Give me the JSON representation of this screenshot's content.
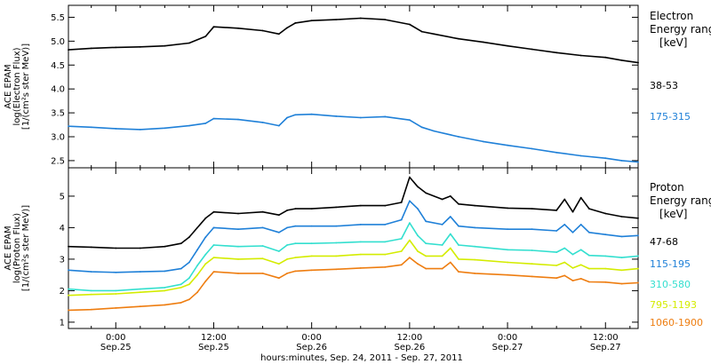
{
  "xlabel": "hours:minutes, Sep. 24, 2011 - Sep. 27, 2011",
  "chart_data": [
    {
      "type": "line",
      "ylabel": [
        "ACE EPAM",
        "log(Electron Flux)",
        "[1/(cm²s ster MeV)]"
      ],
      "ylim": [
        2.35,
        5.75
      ],
      "yticks": [
        2.5,
        3.0,
        3.5,
        4.0,
        4.5,
        5.0,
        5.5
      ],
      "ytick_labels": [
        "2.5",
        "3.0",
        "3.5",
        "4.0",
        "4.5",
        "5.0",
        "5.5"
      ],
      "xlim": [
        -5.8,
        64
      ],
      "xticks": [
        0,
        12,
        24,
        36,
        48,
        60
      ],
      "xtick_labels": [
        [
          "0:00",
          "Sep.25"
        ],
        [
          "12:00",
          "Sep.25"
        ],
        [
          "0:00",
          "Sep.26"
        ],
        [
          "12:00",
          "Sep.26"
        ],
        [
          "0:00",
          "Sep.27"
        ],
        [
          "12:00",
          "Sep.27"
        ]
      ],
      "legend_title": [
        "Electron",
        "Energy ranges",
        "[keV]"
      ],
      "series": [
        {
          "name": "38-53",
          "color": "#000000",
          "x": [
            -5.8,
            -3,
            0,
            3,
            6,
            9,
            11,
            12,
            15,
            18,
            20,
            21,
            22,
            24,
            27,
            30,
            33,
            36,
            37.5,
            39,
            42,
            45,
            48,
            51,
            54,
            57,
            60,
            62,
            64
          ],
          "values": [
            4.82,
            4.85,
            4.87,
            4.88,
            4.9,
            4.96,
            5.1,
            5.3,
            5.27,
            5.22,
            5.15,
            5.28,
            5.38,
            5.43,
            5.45,
            5.48,
            5.45,
            5.35,
            5.2,
            5.15,
            5.05,
            4.98,
            4.9,
            4.83,
            4.76,
            4.7,
            4.66,
            4.6,
            4.55
          ]
        },
        {
          "name": "175-315",
          "color": "#1f80d8",
          "x": [
            -5.8,
            -3,
            0,
            3,
            6,
            9,
            11,
            12,
            15,
            18,
            20,
            21,
            22,
            24,
            27,
            30,
            33,
            36,
            37.5,
            39,
            42,
            45,
            48,
            51,
            54,
            57,
            60,
            62,
            64
          ],
          "values": [
            3.22,
            3.2,
            3.17,
            3.15,
            3.18,
            3.23,
            3.28,
            3.38,
            3.36,
            3.3,
            3.23,
            3.4,
            3.46,
            3.47,
            3.43,
            3.4,
            3.42,
            3.35,
            3.2,
            3.12,
            3.0,
            2.9,
            2.82,
            2.75,
            2.67,
            2.6,
            2.55,
            2.5,
            2.47
          ]
        }
      ]
    },
    {
      "type": "line",
      "ylabel": [
        "ACE EPAM",
        "log(Proton Flux)",
        "[1/(cm²s ster MeV)]"
      ],
      "ylim": [
        0.8,
        5.9
      ],
      "yticks": [
        1,
        2,
        3,
        4,
        5
      ],
      "ytick_labels": [
        "1",
        "2",
        "3",
        "4",
        "5"
      ],
      "xlim": [
        -5.8,
        64
      ],
      "xticks": [
        0,
        12,
        24,
        36,
        48,
        60
      ],
      "xtick_labels": [
        [
          "0:00",
          "Sep.25"
        ],
        [
          "12:00",
          "Sep.25"
        ],
        [
          "0:00",
          "Sep.26"
        ],
        [
          "12:00",
          "Sep.26"
        ],
        [
          "0:00",
          "Sep.27"
        ],
        [
          "12:00",
          "Sep.27"
        ]
      ],
      "legend_title": [
        "Proton",
        "Energy ranges",
        "[keV]"
      ],
      "series": [
        {
          "name": "47-68",
          "color": "#000000",
          "x": [
            -5.8,
            -3,
            0,
            3,
            6,
            8,
            9,
            10,
            11,
            12,
            15,
            18,
            20,
            21,
            22,
            24,
            27,
            30,
            33,
            35,
            36,
            37,
            38,
            40,
            41,
            42,
            44,
            48,
            51,
            54,
            55,
            56,
            57,
            58,
            60,
            62,
            64
          ],
          "values": [
            3.4,
            3.38,
            3.35,
            3.35,
            3.4,
            3.5,
            3.7,
            4.0,
            4.3,
            4.5,
            4.45,
            4.5,
            4.4,
            4.55,
            4.6,
            4.6,
            4.65,
            4.7,
            4.7,
            4.8,
            5.6,
            5.3,
            5.1,
            4.9,
            5.0,
            4.75,
            4.7,
            4.62,
            4.6,
            4.55,
            4.9,
            4.5,
            4.95,
            4.6,
            4.45,
            4.35,
            4.3
          ]
        },
        {
          "name": "115-195",
          "color": "#1f80d8",
          "x": [
            -5.8,
            -3,
            0,
            3,
            6,
            8,
            9,
            10,
            11,
            12,
            15,
            18,
            20,
            21,
            22,
            24,
            27,
            30,
            33,
            35,
            36,
            37,
            38,
            40,
            41,
            42,
            44,
            48,
            51,
            54,
            55,
            56,
            57,
            58,
            60,
            62,
            64
          ],
          "values": [
            2.65,
            2.6,
            2.58,
            2.6,
            2.62,
            2.7,
            2.9,
            3.3,
            3.7,
            4.0,
            3.95,
            4.0,
            3.85,
            4.0,
            4.05,
            4.05,
            4.05,
            4.1,
            4.1,
            4.25,
            4.85,
            4.6,
            4.2,
            4.1,
            4.35,
            4.05,
            4.0,
            3.95,
            3.95,
            3.9,
            4.1,
            3.85,
            4.1,
            3.85,
            3.78,
            3.72,
            3.75
          ]
        },
        {
          "name": "310-580",
          "color": "#33dfcf",
          "x": [
            -5.8,
            -3,
            0,
            3,
            6,
            8,
            9,
            10,
            11,
            12,
            15,
            18,
            20,
            21,
            22,
            24,
            27,
            30,
            33,
            35,
            36,
            37,
            38,
            40,
            41,
            42,
            44,
            48,
            51,
            54,
            55,
            56,
            57,
            58,
            60,
            62,
            64
          ],
          "values": [
            2.05,
            2.0,
            2.0,
            2.05,
            2.1,
            2.2,
            2.4,
            2.8,
            3.15,
            3.45,
            3.4,
            3.42,
            3.25,
            3.45,
            3.5,
            3.5,
            3.52,
            3.55,
            3.55,
            3.65,
            4.15,
            3.75,
            3.5,
            3.45,
            3.8,
            3.45,
            3.4,
            3.3,
            3.28,
            3.22,
            3.35,
            3.15,
            3.3,
            3.12,
            3.1,
            3.05,
            3.1
          ]
        },
        {
          "name": "795-1193",
          "color": "#d4ec00",
          "x": [
            -5.8,
            -3,
            0,
            3,
            6,
            8,
            9,
            10,
            11,
            12,
            15,
            18,
            20,
            21,
            22,
            24,
            27,
            30,
            33,
            35,
            36,
            37,
            38,
            40,
            41,
            42,
            44,
            48,
            51,
            54,
            55,
            56,
            57,
            58,
            60,
            62,
            64
          ],
          "values": [
            1.85,
            1.88,
            1.9,
            1.95,
            2.0,
            2.1,
            2.2,
            2.5,
            2.85,
            3.05,
            3.0,
            3.02,
            2.85,
            3.0,
            3.05,
            3.1,
            3.1,
            3.15,
            3.15,
            3.25,
            3.6,
            3.25,
            3.1,
            3.1,
            3.35,
            3.0,
            2.98,
            2.9,
            2.85,
            2.8,
            2.9,
            2.72,
            2.82,
            2.7,
            2.7,
            2.65,
            2.7
          ]
        },
        {
          "name": "1060-1900",
          "color": "#ee7d10",
          "x": [
            -5.8,
            -3,
            0,
            3,
            6,
            8,
            9,
            10,
            11,
            12,
            15,
            18,
            20,
            21,
            22,
            24,
            27,
            30,
            33,
            35,
            36,
            37,
            38,
            40,
            41,
            42,
            44,
            48,
            51,
            54,
            55,
            56,
            57,
            58,
            60,
            62,
            64
          ],
          "values": [
            1.38,
            1.4,
            1.45,
            1.5,
            1.55,
            1.62,
            1.72,
            1.95,
            2.3,
            2.6,
            2.55,
            2.55,
            2.4,
            2.55,
            2.62,
            2.65,
            2.68,
            2.72,
            2.75,
            2.82,
            3.05,
            2.85,
            2.7,
            2.7,
            2.9,
            2.6,
            2.55,
            2.5,
            2.45,
            2.4,
            2.48,
            2.32,
            2.38,
            2.28,
            2.27,
            2.22,
            2.25
          ]
        }
      ]
    }
  ]
}
